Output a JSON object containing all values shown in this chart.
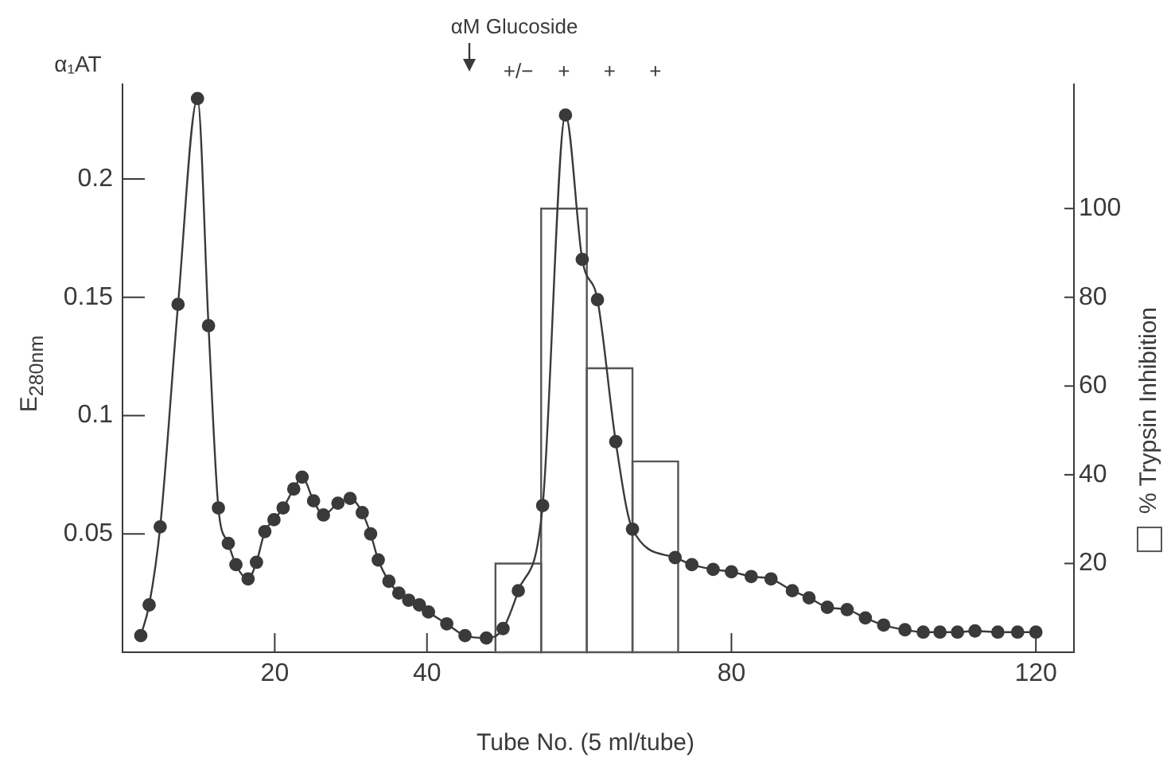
{
  "chart_data": {
    "type": "line",
    "xlabel": "Tube No. (5 ml/tube)",
    "ylabel": "E$_{280nm}$",
    "y2label": "% Trypsin Inhibition",
    "series": [
      {
        "color": "#3a3a3a",
        "x": [
          2.4,
          3.5,
          4.95,
          7.3,
          9.85,
          11.3,
          12.6,
          13.9,
          14.9,
          16.5,
          17.6,
          18.7,
          19.9,
          21.1,
          22.5,
          23.6,
          25.1,
          26.4,
          28.3,
          29.9,
          31.5,
          32.6,
          33.6,
          35.0,
          36.3,
          37.6,
          39.0,
          40.2,
          42.6,
          45,
          47.8,
          50,
          52,
          55.2,
          58.2,
          60.4,
          62.4,
          64.8,
          67,
          72.6,
          74.8,
          77.6,
          80,
          82.6,
          85.2,
          88,
          90.2,
          92.6,
          95.2,
          97.6,
          100,
          102.8,
          105.2,
          107.4,
          109.7,
          112,
          115,
          117.6,
          120
        ],
        "values": [
          0.007,
          0.02,
          0.053,
          0.147,
          0.234,
          0.138,
          0.061,
          0.046,
          0.037,
          0.031,
          0.038,
          0.051,
          0.056,
          0.061,
          0.069,
          0.074,
          0.064,
          0.058,
          0.063,
          0.065,
          0.059,
          0.05,
          0.039,
          0.03,
          0.025,
          0.022,
          0.02,
          0.017,
          0.012,
          0.007,
          0.006,
          0.01,
          0.026,
          0.062,
          0.227,
          0.166,
          0.149,
          0.089,
          0.052,
          0.04,
          0.037,
          0.035,
          0.034,
          0.032,
          0.031,
          0.026,
          0.023,
          0.019,
          0.018,
          0.0145,
          0.0115,
          0.0095,
          0.0085,
          0.0085,
          0.0085,
          0.009,
          0.0085,
          0.0085,
          0.0085
        ]
      },
      {
        "type": "histogram",
        "axis": "y2",
        "color": "#555555",
        "bins": [
          49,
          55,
          61,
          67,
          73
        ],
        "values": [
          20,
          100,
          64,
          43
        ]
      }
    ],
    "xlim": [
      0,
      125
    ],
    "xticks": [
      20,
      40,
      80,
      120
    ],
    "ylim": [
      0,
      0.24
    ],
    "yticks": [
      0.05,
      0.1,
      0.15,
      0.2
    ],
    "y2lim": [
      0,
      128
    ],
    "y2ticks": [
      20,
      40,
      60,
      80,
      100
    ],
    "marker": "circle",
    "grid": false,
    "legend": false,
    "annotations": [
      "α₁AT",
      "αM Glucoside",
      "+/−",
      "+",
      "+",
      "+"
    ]
  }
}
